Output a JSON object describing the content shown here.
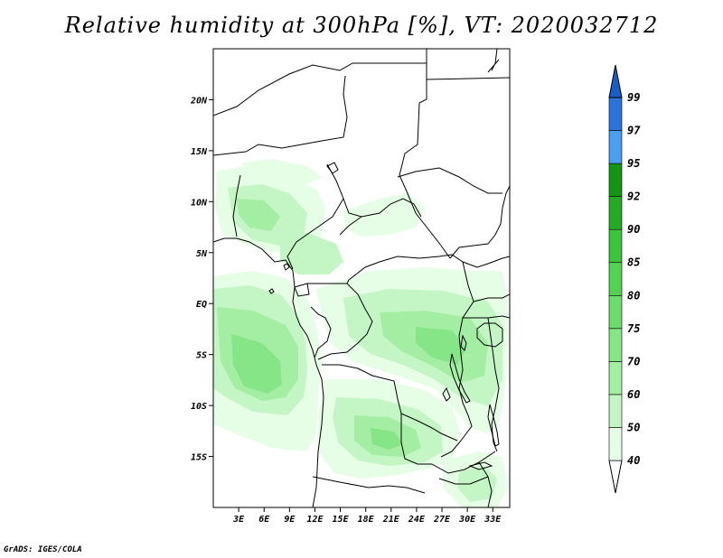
{
  "title": "Relative humidity at 300hPa [%], VT: 2020032712",
  "credit": "GrADS: IGES/COLA",
  "map": {
    "lon_range": [
      0,
      35
    ],
    "lat_range": [
      -20,
      25
    ],
    "lat_ticks": [
      {
        "value": 20,
        "label": "20N"
      },
      {
        "value": 15,
        "label": "15N"
      },
      {
        "value": 10,
        "label": "10N"
      },
      {
        "value": 5,
        "label": "5N"
      },
      {
        "value": 0,
        "label": "EQ"
      },
      {
        "value": -5,
        "label": "5S"
      },
      {
        "value": -10,
        "label": "10S"
      },
      {
        "value": -15,
        "label": "15S"
      }
    ],
    "lon_ticks": [
      {
        "value": 3,
        "label": "3E"
      },
      {
        "value": 6,
        "label": "6E"
      },
      {
        "value": 9,
        "label": "9E"
      },
      {
        "value": 12,
        "label": "12E"
      },
      {
        "value": 15,
        "label": "15E"
      },
      {
        "value": 18,
        "label": "18E"
      },
      {
        "value": 21,
        "label": "21E"
      },
      {
        "value": 24,
        "label": "24E"
      },
      {
        "value": 27,
        "label": "27E"
      },
      {
        "value": 30,
        "label": "30E"
      },
      {
        "value": 33,
        "label": "33E"
      }
    ]
  },
  "colorbar": {
    "levels": [
      "40",
      "50",
      "60",
      "70",
      "75",
      "80",
      "85",
      "90",
      "92",
      "95",
      "97",
      "99"
    ],
    "colors": [
      "#ffffff",
      "#e6fde6",
      "#c4f5c4",
      "#a4eea4",
      "#86e586",
      "#6cdc6c",
      "#52d452",
      "#3cc43c",
      "#26aa26",
      "#149614",
      "#4a9eee",
      "#2c74dc",
      "#1c5cc6"
    ]
  },
  "humidity_colors": {
    "light": "#e6fde6",
    "mid": "#c4f5c4",
    "strong": "#a4eea4",
    "deep": "#86e586"
  }
}
